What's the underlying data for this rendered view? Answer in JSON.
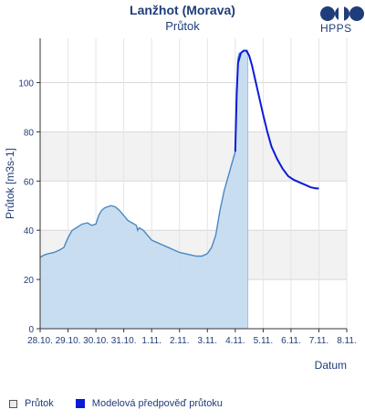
{
  "header": {
    "title": "Lanžhot (Morava)",
    "subtitle": "Průtok",
    "logo_text": "HPPS"
  },
  "colors": {
    "observed_fill": "#c6dbf0",
    "observed_line": "#4a88c2",
    "model_line": "#0a1bd8",
    "band": "#f2f2f2",
    "text": "#1f3d7a"
  },
  "legend": {
    "observed": "Průtok",
    "model": "Modelová předpověď průtoku"
  },
  "chart_data": {
    "type": "area",
    "title": "Průtok",
    "xlabel": "Datum",
    "ylabel": "Průtok [m3s-1]",
    "ylim": [
      0,
      118
    ],
    "xlim": [
      0,
      11
    ],
    "x_ticks": [
      0,
      1,
      2,
      3,
      4,
      5,
      6,
      7,
      8,
      9,
      10,
      11
    ],
    "x_tick_labels": [
      "28.10.",
      "29.10.",
      "30.10.",
      "31.10.",
      "1.11.",
      "2.11.",
      "3.11.",
      "4.11.",
      "5.11.",
      "6.11.",
      "7.11.",
      "8.11."
    ],
    "y_ticks": [
      0,
      20,
      40,
      60,
      80,
      100
    ],
    "y_tick_labels": [
      "0",
      "20",
      "40",
      "60",
      "80",
      "100"
    ],
    "grid": true,
    "series": [
      {
        "name": "Průtok",
        "style": "area",
        "x": [
          0,
          0.15,
          0.3,
          0.5,
          0.7,
          0.85,
          1.0,
          1.15,
          1.3,
          1.5,
          1.7,
          1.85,
          2.0,
          2.1,
          2.2,
          2.3,
          2.4,
          2.55,
          2.7,
          2.85,
          3.0,
          3.15,
          3.3,
          3.45,
          3.5,
          3.55,
          3.7,
          3.85,
          4.0,
          4.2,
          4.4,
          4.6,
          4.8,
          5.0,
          5.2,
          5.4,
          5.6,
          5.8,
          6.0,
          6.15,
          6.3,
          6.45,
          6.6,
          6.75,
          6.9,
          7.0,
          7.05,
          7.1,
          7.15,
          7.2,
          7.3,
          7.45
        ],
        "y": [
          29,
          30,
          30.5,
          31,
          32,
          33,
          37,
          40,
          41,
          42.5,
          43,
          42,
          42.5,
          46,
          48,
          49,
          49.5,
          50,
          49.5,
          48,
          46,
          44,
          43,
          42,
          40,
          41,
          40,
          38,
          36,
          35,
          34,
          33,
          32,
          31,
          30.5,
          30,
          29.5,
          29.5,
          30.5,
          33,
          38,
          48,
          56,
          62,
          68,
          72,
          95,
          110,
          112,
          112,
          113,
          113
        ]
      },
      {
        "name": "Modelová předpověď průtoku",
        "style": "line",
        "x": [
          7.0,
          7.05,
          7.1,
          7.2,
          7.3,
          7.4,
          7.5,
          7.6,
          7.7,
          7.8,
          7.9,
          8.0,
          8.15,
          8.3,
          8.5,
          8.7,
          8.9,
          9.1,
          9.3,
          9.5,
          9.7,
          9.9,
          10.0
        ],
        "y": [
          72,
          95,
          108,
          112,
          113,
          113,
          111,
          107,
          102,
          97,
          92,
          87,
          80,
          74,
          69,
          65,
          62,
          60.5,
          59.5,
          58.5,
          57.5,
          57,
          57
        ]
      }
    ]
  }
}
